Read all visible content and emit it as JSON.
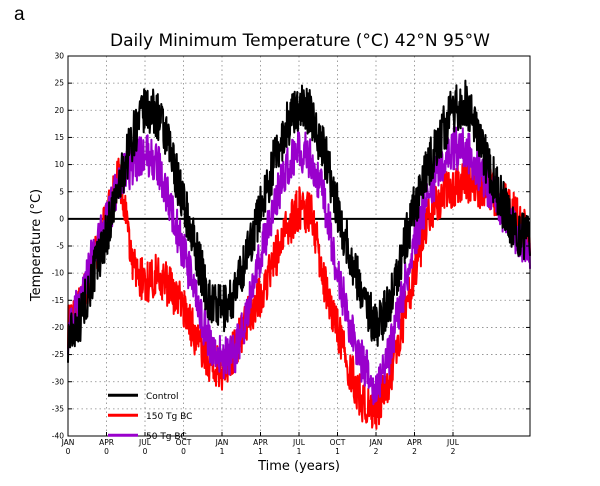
{
  "panel_label": "a",
  "chart_data": {
    "type": "line",
    "title": "Daily Minimum Temperature (°C) 42°N 95°W",
    "xlabel": "Time (years)",
    "ylabel": "Temperature (°C)",
    "ylim": [
      -40,
      30
    ],
    "yticks": [
      -40,
      -35,
      -30,
      -25,
      -20,
      -15,
      -10,
      -5,
      0,
      5,
      10,
      15,
      20,
      25,
      30
    ],
    "xlim": [
      0,
      36
    ],
    "x_unit": "months since JAN year 0",
    "xticks": [
      {
        "x": 0,
        "month": "JAN",
        "year": "0"
      },
      {
        "x": 3,
        "month": "APR",
        "year": "0"
      },
      {
        "x": 6,
        "month": "JUL",
        "year": "0"
      },
      {
        "x": 9,
        "month": "OCT",
        "year": "0"
      },
      {
        "x": 12,
        "month": "JAN",
        "year": "1"
      },
      {
        "x": 15,
        "month": "APR",
        "year": "1"
      },
      {
        "x": 18,
        "month": "JUL",
        "year": "1"
      },
      {
        "x": 21,
        "month": "OCT",
        "year": "1"
      },
      {
        "x": 24,
        "month": "JAN",
        "year": "2"
      },
      {
        "x": 27,
        "month": "APR",
        "year": "2"
      },
      {
        "x": 30,
        "month": "JUL",
        "year": "2"
      }
    ],
    "grid": "dotted",
    "zero_line": true,
    "legend_position": "bottom-left",
    "series": [
      {
        "name": "Control",
        "color": "#000000",
        "x": [
          0,
          1,
          2,
          3,
          4,
          5,
          6,
          7,
          8,
          9,
          10,
          11,
          12,
          13,
          14,
          15,
          16,
          17,
          18,
          19,
          20,
          21,
          22,
          23,
          24,
          25,
          26,
          27,
          28,
          29,
          30,
          31,
          32,
          33,
          34,
          35,
          36
        ],
        "y": [
          -22,
          -18,
          -10,
          -3,
          6,
          15,
          20,
          19,
          12,
          3,
          -6,
          -15,
          -17,
          -14,
          -6,
          2,
          10,
          17,
          21,
          19,
          12,
          2,
          -7,
          -14,
          -20,
          -16,
          -7,
          2,
          9,
          15,
          20,
          21,
          15,
          8,
          2,
          -3,
          -4
        ]
      },
      {
        "name": "150 Tg BC",
        "color": "#ff0000",
        "x": [
          0,
          1,
          2,
          3,
          4,
          5,
          6,
          7,
          8,
          9,
          10,
          11,
          12,
          13,
          14,
          15,
          16,
          17,
          18,
          19,
          20,
          21,
          22,
          23,
          24,
          25,
          26,
          27,
          28,
          29,
          30,
          31,
          32,
          33,
          34,
          35,
          36
        ],
        "y": [
          -20,
          -16,
          -8,
          0,
          8,
          -8,
          -12,
          -10,
          -13,
          -16,
          -22,
          -26,
          -28,
          -24,
          -18,
          -14,
          -8,
          -2,
          2,
          1,
          -12,
          -20,
          -28,
          -34,
          -35,
          -30,
          -20,
          -10,
          0,
          4,
          6,
          7,
          6,
          5,
          3,
          0,
          -4
        ]
      },
      {
        "name": "50 Tg BC",
        "color": "#9900cc",
        "x": [
          0,
          1,
          2,
          3,
          4,
          5,
          6,
          7,
          8,
          9,
          10,
          11,
          12,
          13,
          14,
          15,
          16,
          17,
          18,
          19,
          20,
          21,
          22,
          23,
          24,
          25,
          26,
          27,
          28,
          29,
          30,
          31,
          32,
          33,
          34,
          35,
          36
        ],
        "y": [
          -21,
          -15,
          -6,
          -1,
          7,
          10,
          12,
          10,
          2,
          -6,
          -15,
          -23,
          -26,
          -25,
          -17,
          -7,
          2,
          9,
          13,
          11,
          3,
          -10,
          -20,
          -27,
          -31,
          -25,
          -15,
          -4,
          4,
          10,
          13,
          13,
          9,
          5,
          1,
          -3,
          -6
        ]
      }
    ]
  }
}
